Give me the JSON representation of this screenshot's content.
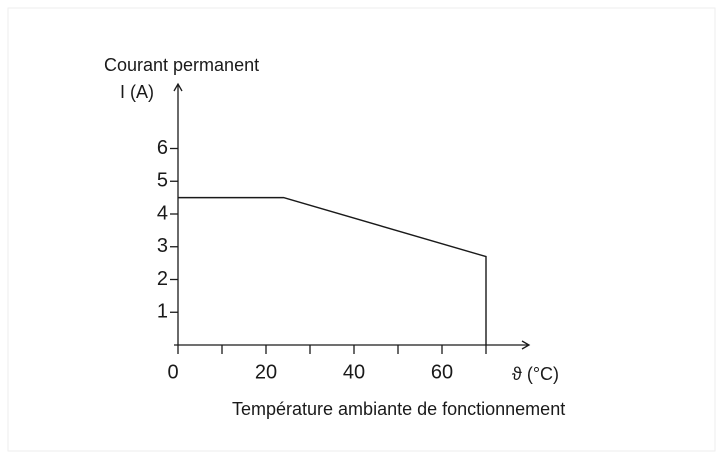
{
  "chart_data": {
    "type": "line",
    "ylabel_lines": [
      "Courant permanent",
      "I (A)"
    ],
    "xunit": "ϑ (°C)",
    "xlabel": "Température ambiante de fonctionnement",
    "series": [
      {
        "color": "#1a1a1a",
        "x": [
          0,
          24,
          70,
          70
        ],
        "values": [
          4.5,
          4.5,
          2.7,
          0
        ]
      }
    ],
    "xlim": [
      0,
      80
    ],
    "ylim": [
      0,
      8
    ],
    "xticks": [
      0,
      20,
      40,
      60
    ],
    "xminor_ticks": [
      10,
      30,
      50,
      70
    ],
    "yticks": [
      1,
      2,
      3,
      4,
      5,
      6
    ],
    "grid": false
  }
}
